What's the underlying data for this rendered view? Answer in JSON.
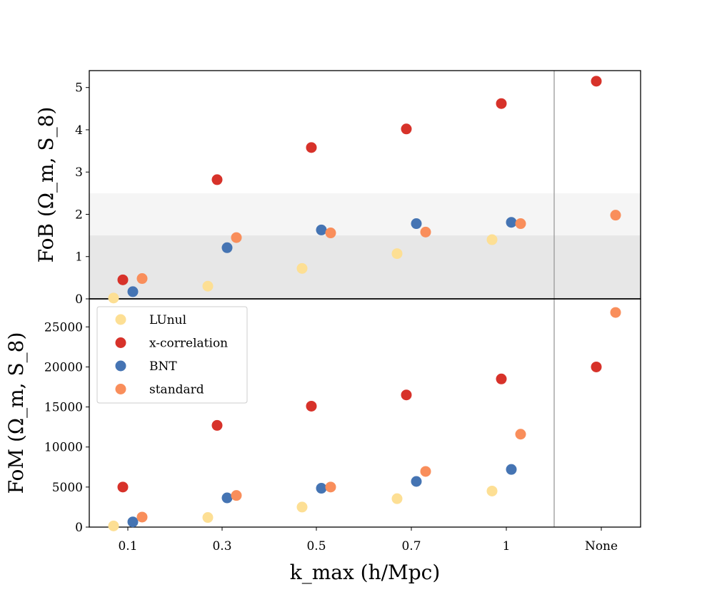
{
  "chart_data": {
    "type": "scatter",
    "categories": [
      "0.1",
      "0.3",
      "0.5",
      "0.7",
      "1",
      "None"
    ],
    "xlabel": "k_max (h/Mpc)",
    "colors": {
      "LUnul": "#fddf94",
      "x-correlation": "#d7322a",
      "BNT": "#4574b3",
      "standard": "#f98e5b",
      "shade_light": "#f5f5f5",
      "shade_dark": "#e7e7e7",
      "separator": "#999999"
    },
    "panels": [
      {
        "id": "fob",
        "ylabel_main": "FoB",
        "ylabel_args": "(Ω_m, S_8)",
        "ylim": [
          0,
          5.4
        ],
        "yticks": [
          0,
          1,
          2,
          3,
          4,
          5
        ],
        "bands": [
          {
            "from": 0,
            "to": 2.5,
            "tone": "light"
          },
          {
            "from": 0,
            "to": 1.5,
            "tone": "dark"
          }
        ],
        "series": [
          {
            "name": "LUnul",
            "values": [
              0.02,
              0.3,
              0.72,
              1.07,
              1.4,
              null
            ]
          },
          {
            "name": "x-correlation",
            "values": [
              0.45,
              2.82,
              3.58,
              4.02,
              4.62,
              5.15
            ]
          },
          {
            "name": "BNT",
            "values": [
              0.17,
              1.21,
              1.63,
              1.78,
              1.81,
              null
            ]
          },
          {
            "name": "standard",
            "values": [
              0.48,
              1.45,
              1.56,
              1.58,
              1.78,
              1.98
            ]
          }
        ]
      },
      {
        "id": "fom",
        "ylabel_main": "FoM",
        "ylabel_args": "(Ω_m, S_8)",
        "ylim": [
          0,
          28500
        ],
        "yticks": [
          0,
          5000,
          10000,
          15000,
          20000,
          25000
        ],
        "bands": [],
        "series": [
          {
            "name": "LUnul",
            "values": [
              150,
              1200,
              2500,
              3550,
              4500,
              null
            ]
          },
          {
            "name": "x-correlation",
            "values": [
              5000,
              12700,
              15100,
              16500,
              18500,
              20000
            ]
          },
          {
            "name": "BNT",
            "values": [
              650,
              3650,
              4850,
              5700,
              7200,
              null
            ]
          },
          {
            "name": "standard",
            "values": [
              1250,
              3950,
              5000,
              6950,
              11600,
              26800
            ]
          }
        ]
      }
    ],
    "legend": {
      "placement": "upper-left of lower panel",
      "entries": [
        "LUnul",
        "x-correlation",
        "BNT",
        "standard"
      ]
    }
  }
}
